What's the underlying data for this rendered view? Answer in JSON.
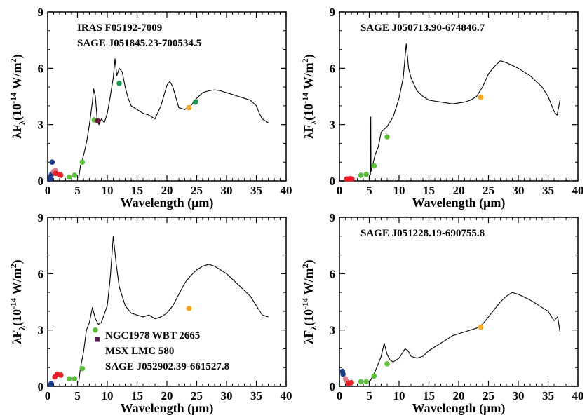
{
  "chart_data": [
    {
      "type": "line",
      "xlabel": "Wavelength (μm)",
      "ylabel": [
        "λF",
        "λ",
        "(10",
        "-14",
        " W/m",
        "2",
        ")"
      ],
      "annotations": [
        "IRAS F05192-7009",
        "SAGE J051845.23-700534.5"
      ],
      "xlim": [
        0,
        40
      ],
      "ylim": [
        0,
        9
      ],
      "xticks": [
        0,
        5,
        10,
        15,
        20,
        25,
        30,
        35,
        40
      ],
      "yticks": [
        0,
        3,
        6,
        9
      ],
      "series": [
        {
          "type": "line",
          "color": "#000000",
          "x": [
            5.2,
            5.5,
            5.8,
            6.2,
            6.6,
            7.0,
            7.5,
            7.7,
            8.0,
            8.3,
            8.6,
            9.0,
            9.5,
            10.0,
            10.5,
            11.0,
            11.3,
            11.6,
            12.0,
            12.5,
            13,
            13.5,
            14,
            15,
            16,
            17,
            18,
            19,
            20,
            20.5,
            21,
            22,
            23,
            24,
            25,
            26,
            27,
            28,
            29,
            30,
            31,
            32,
            33,
            34,
            35,
            35.5,
            36,
            37
          ],
          "values": [
            0.15,
            0.8,
            1.1,
            1.6,
            2.2,
            3.0,
            4.2,
            4.9,
            4.5,
            3.3,
            3.0,
            3.3,
            3.1,
            3.6,
            4.5,
            5.5,
            6.5,
            5.6,
            6.0,
            5.8,
            5.0,
            4.4,
            4.0,
            3.8,
            3.6,
            3.5,
            3.3,
            4.0,
            5.1,
            5.3,
            5.0,
            3.9,
            3.8,
            4.0,
            4.4,
            4.7,
            4.8,
            4.85,
            4.8,
            4.7,
            4.6,
            4.5,
            4.4,
            4.3,
            4.0,
            3.6,
            3.3,
            3.1
          ]
        },
        {
          "type": "scatter",
          "color": "#1f3c88",
          "x": [
            0.45,
            0.55,
            0.65,
            0.75
          ],
          "values": [
            0.1,
            0.25,
            0.35,
            1.0
          ]
        },
        {
          "type": "scatter",
          "color": "#e07a8a",
          "x": [
            1.0,
            1.3
          ],
          "values": [
            0.5,
            0.55
          ]
        },
        {
          "type": "scatter",
          "color": "#e8202a",
          "x": [
            1.3,
            1.9,
            2.2
          ],
          "values": [
            0.4,
            0.35,
            0.3
          ]
        },
        {
          "type": "scatter",
          "color": "#5cbf3c",
          "x": [
            3.6,
            4.5,
            5.8,
            7.8
          ],
          "values": [
            0.2,
            0.3,
            1.0,
            3.25
          ]
        },
        {
          "type": "scatter",
          "color": "#1a9a50",
          "x": [
            12,
            24.8
          ],
          "values": [
            5.2,
            4.2
          ]
        },
        {
          "type": "scatter",
          "color": "#f5a623",
          "x": [
            23.7
          ],
          "values": [
            3.9
          ]
        },
        {
          "type": "scatter",
          "color": "#6b1a3a",
          "x": [
            8.4
          ],
          "values": [
            3.2
          ]
        }
      ]
    },
    {
      "type": "line",
      "xlabel": "Wavelength (μm)",
      "ylabel": [
        "λF",
        "λ",
        "(10",
        "-14",
        " W/m",
        "2",
        ")"
      ],
      "annotations": [
        "SAGE J050713.90-674846.7"
      ],
      "xlim": [
        0,
        40
      ],
      "ylim": [
        0,
        9
      ],
      "xticks": [
        0,
        5,
        10,
        15,
        20,
        25,
        30,
        35,
        40
      ],
      "yticks": [
        0,
        3,
        6,
        9
      ],
      "series": [
        {
          "type": "line",
          "color": "#000000",
          "x": [
            5.2,
            5.25,
            5.3,
            5.6,
            6,
            6.5,
            7,
            8,
            9,
            10,
            10.7,
            11.2,
            11.6,
            12,
            13,
            14,
            15,
            17,
            19,
            21,
            22,
            23,
            24,
            25,
            26,
            27,
            28,
            30,
            32,
            34,
            35,
            36,
            36.5,
            37
          ],
          "values": [
            0.3,
            3.4,
            0.5,
            0.9,
            1.4,
            1.8,
            2.6,
            2.9,
            3.4,
            4.4,
            5.5,
            7.3,
            6.0,
            5.5,
            4.8,
            4.5,
            4.3,
            4.2,
            4.1,
            4.2,
            4.3,
            4.5,
            5.0,
            5.7,
            6.1,
            6.4,
            6.3,
            6.0,
            5.6,
            5.0,
            4.5,
            3.7,
            3.5,
            4.3
          ]
        },
        {
          "type": "scatter",
          "color": "#e8202a",
          "x": [
            1.2,
            1.5,
            1.8,
            2.1
          ],
          "values": [
            0.1,
            0.1,
            0.12,
            0.1
          ]
        },
        {
          "type": "scatter",
          "color": "#5cbf3c",
          "x": [
            3.6,
            4.5,
            5.8,
            8.0
          ],
          "values": [
            0.3,
            0.35,
            0.8,
            2.35
          ]
        },
        {
          "type": "scatter",
          "color": "#f5a623",
          "x": [
            23.7
          ],
          "values": [
            4.45
          ]
        }
      ]
    },
    {
      "type": "line",
      "xlabel": "Wavelength (μm)",
      "ylabel": [
        "λF",
        "λ",
        "(10",
        "-14",
        " W/m",
        "2",
        ")"
      ],
      "annotations": [
        "NGC1978 WBT 2665",
        "MSX LMC 580",
        "SAGE J052902.39-661527.8"
      ],
      "xlim": [
        0,
        40
      ],
      "ylim": [
        0,
        9
      ],
      "xticks": [
        0,
        5,
        10,
        15,
        20,
        25,
        30,
        35,
        40
      ],
      "yticks": [
        0,
        3,
        6,
        9
      ],
      "series": [
        {
          "type": "line",
          "color": "#000000",
          "x": [
            5.2,
            5.5,
            6,
            6.5,
            7,
            7.5,
            8,
            8.5,
            9,
            10,
            10.5,
            11,
            11.5,
            12,
            13,
            14,
            15,
            16,
            17,
            18,
            19,
            20,
            21,
            22,
            23,
            24,
            25,
            26,
            27,
            28,
            30,
            32,
            34,
            35,
            36,
            37
          ],
          "values": [
            0.2,
            1.0,
            1.8,
            3.0,
            3.4,
            4.2,
            3.6,
            3.3,
            3.4,
            4.3,
            5.8,
            8.0,
            6.5,
            5.3,
            4.3,
            3.9,
            3.8,
            3.7,
            3.8,
            3.6,
            3.7,
            3.9,
            4.3,
            4.9,
            5.5,
            5.9,
            6.2,
            6.4,
            6.5,
            6.4,
            6.0,
            5.4,
            4.8,
            4.3,
            3.8,
            3.7
          ]
        },
        {
          "type": "scatter",
          "color": "#1f3c88",
          "x": [
            0.5,
            0.6
          ],
          "values": [
            0.1,
            0.15
          ]
        },
        {
          "type": "scatter",
          "color": "#e8202a",
          "x": [
            1.2,
            1.6,
            2.2
          ],
          "values": [
            0.5,
            0.65,
            0.6
          ]
        },
        {
          "type": "scatter",
          "color": "#5cbf3c",
          "x": [
            3.6,
            4.5,
            5.8,
            8.0
          ],
          "values": [
            0.4,
            0.4,
            0.95,
            3.0
          ]
        },
        {
          "type": "scatter",
          "color": "#f5a623",
          "x": [
            23.7
          ],
          "values": [
            4.15
          ]
        },
        {
          "type": "scatter",
          "marker": "square",
          "color": "#5a1a5a",
          "x": [
            8.3
          ],
          "values": [
            2.5
          ]
        }
      ]
    },
    {
      "type": "line",
      "xlabel": "Wavelength (μm)",
      "ylabel": [
        "λF",
        "λ",
        "(10",
        "-14",
        " W/m",
        "2",
        ")"
      ],
      "annotations": [
        "SAGE J051228.19-690755.8"
      ],
      "xlim": [
        0,
        40
      ],
      "ylim": [
        0,
        9
      ],
      "xticks": [
        0,
        5,
        10,
        15,
        20,
        25,
        30,
        35,
        40
      ],
      "yticks": [
        0,
        3,
        6,
        9
      ],
      "series": [
        {
          "type": "line",
          "color": "#000000",
          "x": [
            5.2,
            5.5,
            6,
            6.5,
            7,
            7.5,
            8,
            8.5,
            9,
            10,
            11,
            11.5,
            12,
            13,
            14,
            15,
            16,
            17,
            18,
            19,
            20,
            21,
            22,
            23,
            24,
            25,
            26,
            27,
            28,
            29,
            30,
            32,
            34,
            35,
            36,
            36.6,
            37
          ],
          "values": [
            0.3,
            0.5,
            0.8,
            1.2,
            1.6,
            2.3,
            1.7,
            1.4,
            1.3,
            1.5,
            2.0,
            1.9,
            1.6,
            1.5,
            1.6,
            1.9,
            2.1,
            2.3,
            2.5,
            2.7,
            2.8,
            2.9,
            3.0,
            3.1,
            3.3,
            3.7,
            4.1,
            4.5,
            4.8,
            5.0,
            4.9,
            4.6,
            4.2,
            4.0,
            3.5,
            3.7,
            2.9
          ]
        },
        {
          "type": "scatter",
          "color": "#1f3c88",
          "x": [
            0.5,
            0.6
          ],
          "values": [
            0.8,
            0.65
          ]
        },
        {
          "type": "scatter",
          "color": "#e07a8a",
          "x": [
            1.0,
            1.3
          ],
          "values": [
            0.4,
            0.25
          ]
        },
        {
          "type": "scatter",
          "color": "#e8202a",
          "x": [
            1.5,
            2.0
          ],
          "values": [
            0.15,
            0.2
          ]
        },
        {
          "type": "scatter",
          "color": "#5cbf3c",
          "x": [
            3.6,
            4.5,
            5.8,
            8.0
          ],
          "values": [
            0.25,
            0.25,
            0.55,
            1.2
          ]
        },
        {
          "type": "scatter",
          "color": "#f5a623",
          "x": [
            23.7
          ],
          "values": [
            3.15
          ]
        }
      ]
    }
  ]
}
